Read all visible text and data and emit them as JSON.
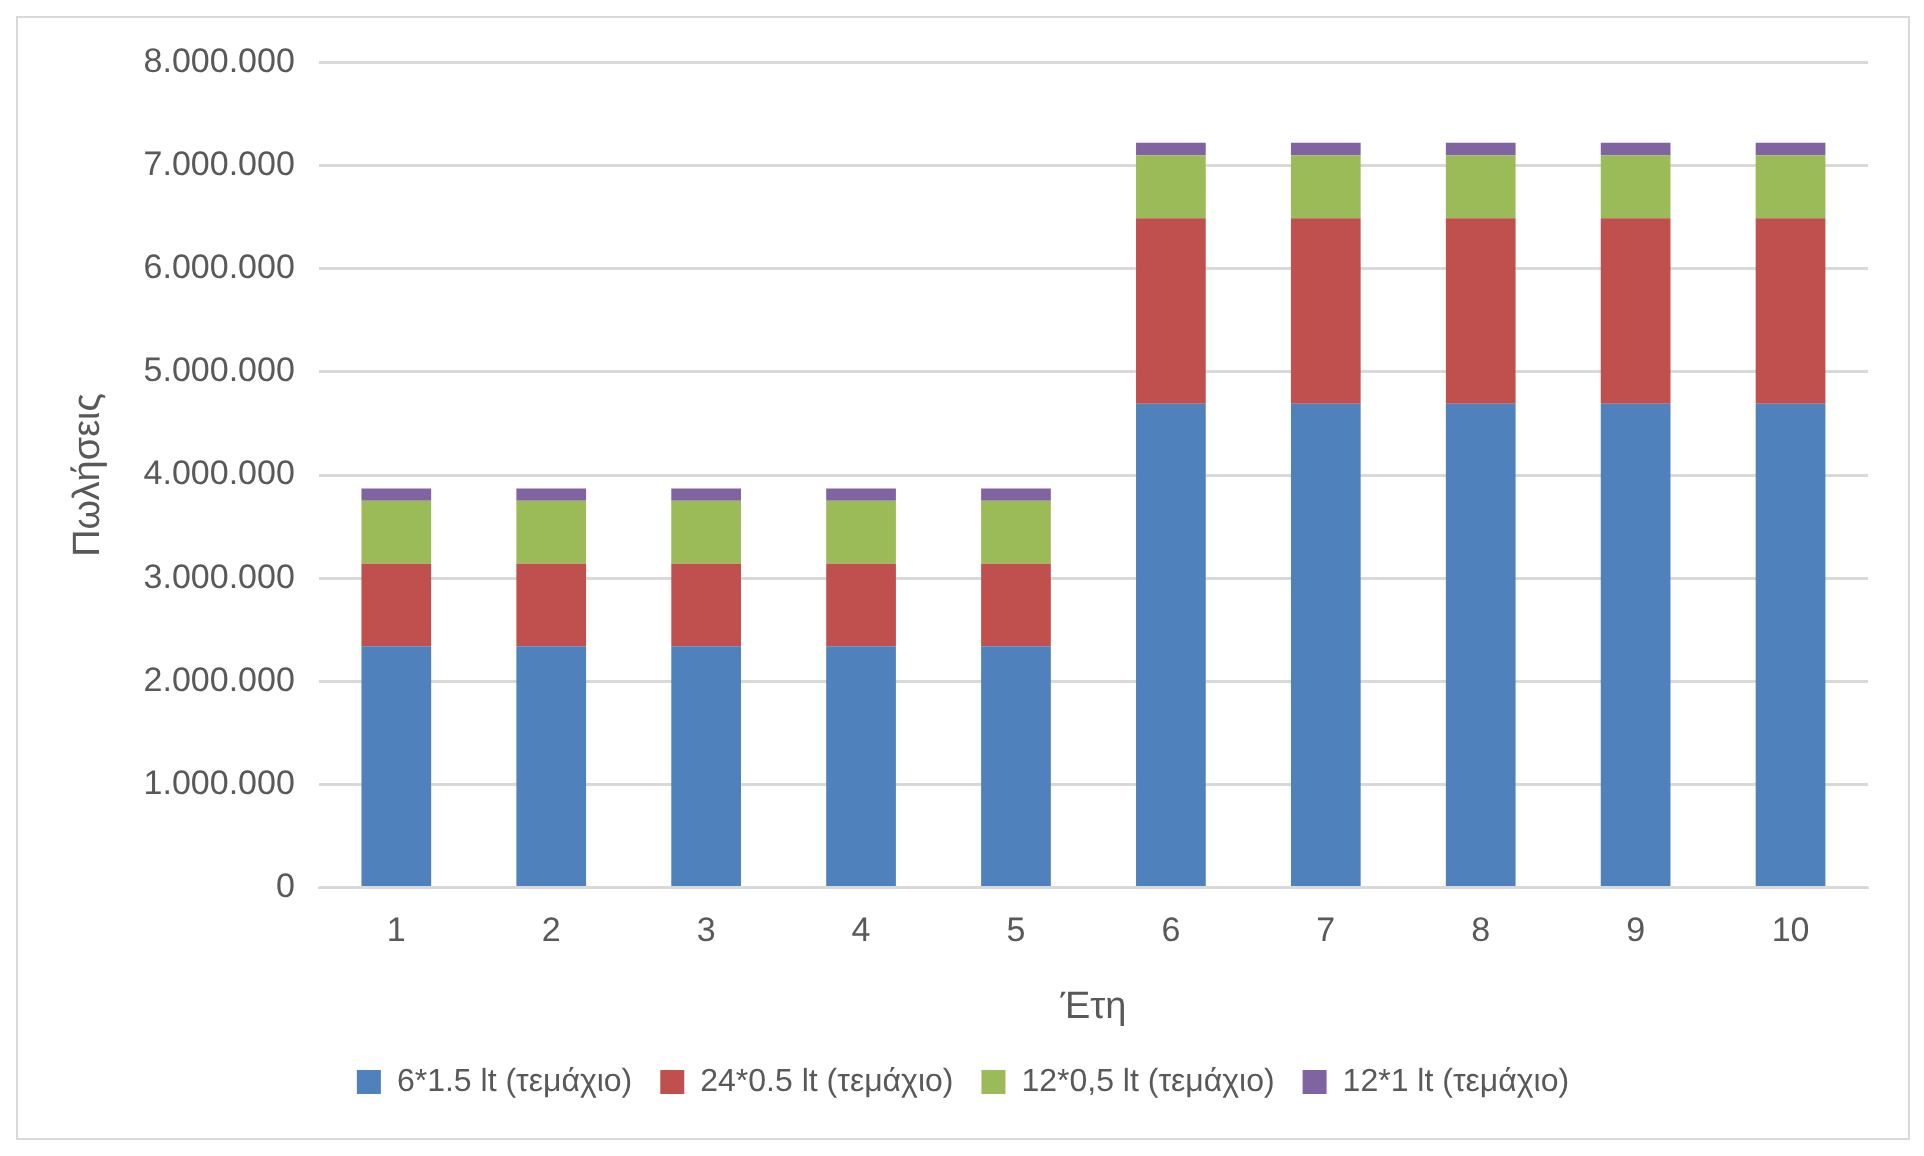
{
  "chart_data": {
    "type": "bar",
    "stacked": true,
    "xlabel": "Έτη",
    "ylabel": "Πωλήσεις",
    "categories": [
      "1",
      "2",
      "3",
      "4",
      "5",
      "6",
      "7",
      "8",
      "9",
      "10"
    ],
    "series": [
      {
        "name": "6*1.5 lt (τεμάχιο)",
        "color": "#4f81bd",
        "values": [
          2340000,
          2340000,
          2340000,
          2340000,
          2340000,
          4690000,
          4690000,
          4690000,
          4690000,
          4690000
        ]
      },
      {
        "name": "24*0.5 lt (τεμάχιο)",
        "color": "#c0504d",
        "values": [
          800000,
          800000,
          800000,
          800000,
          800000,
          1800000,
          1800000,
          1800000,
          1800000,
          1800000
        ]
      },
      {
        "name": "12*0,5 lt (τεμάχιο)",
        "color": "#9bbb59",
        "values": [
          610000,
          610000,
          610000,
          610000,
          610000,
          610000,
          610000,
          610000,
          610000,
          610000
        ]
      },
      {
        "name": "12*1 lt (τεμάχιο)",
        "color": "#8064a2",
        "values": [
          120000,
          120000,
          120000,
          120000,
          120000,
          120000,
          120000,
          120000,
          120000,
          120000
        ]
      }
    ],
    "ylim": [
      0,
      8000000
    ],
    "yticks": [
      0,
      {
        "value": 1000000,
        "label": "1.000.000"
      },
      {
        "value": 2000000,
        "label": "2.000.000"
      },
      {
        "value": 3000000,
        "label": "3.000.000"
      },
      {
        "value": 4000000,
        "label": "4.000.000"
      },
      {
        "value": 5000000,
        "label": "5.000.000"
      },
      {
        "value": 6000000,
        "label": "6.000.000"
      },
      {
        "value": 7000000,
        "label": "7.000.000"
      },
      {
        "value": 8000000,
        "label": "8.000.000"
      }
    ],
    "grid": "y",
    "legend": "bottom"
  }
}
